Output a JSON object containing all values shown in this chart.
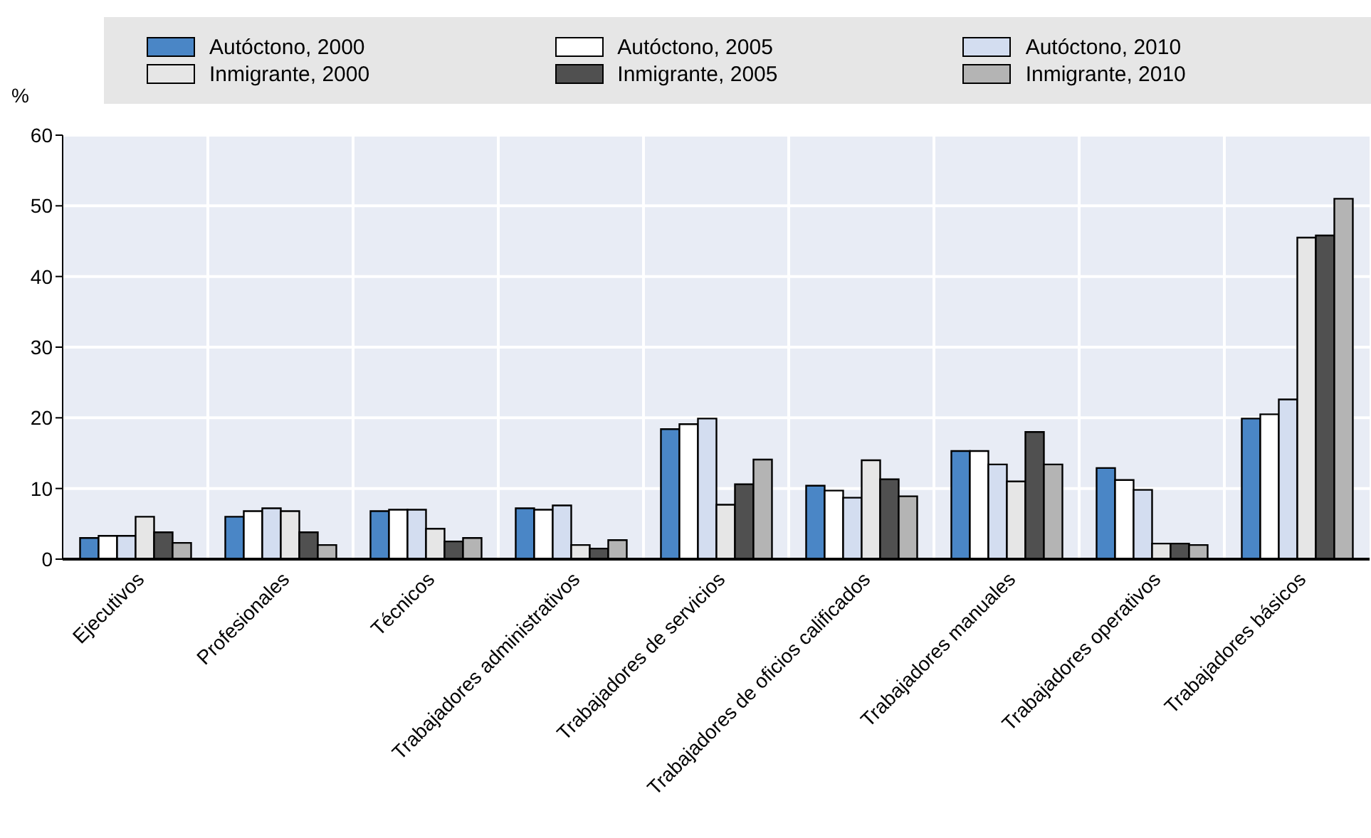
{
  "chart_data": {
    "type": "bar",
    "ylabel": "%",
    "categories": [
      "Ejecutivos",
      "Profesionales",
      "Técnicos",
      "Trabajadores administrativos",
      "Trabajadores de servicios",
      "Trabajadores de oficios calificados",
      "Trabajadores manuales",
      "Trabajadores operativos",
      "Trabajadores básicos"
    ],
    "series": [
      {
        "name": "Autóctono, 2000",
        "color": "#4a86c6",
        "values": [
          3.0,
          6.0,
          6.8,
          7.2,
          18.4,
          10.4,
          15.3,
          12.9,
          19.9
        ]
      },
      {
        "name": "Autóctono, 2005",
        "color": "#ffffff",
        "values": [
          3.3,
          6.8,
          7.0,
          7.0,
          19.1,
          9.7,
          15.3,
          11.2,
          20.5
        ]
      },
      {
        "name": "Autóctono, 2010",
        "color": "#d3ddf0",
        "values": [
          3.3,
          7.2,
          7.0,
          7.6,
          19.9,
          8.7,
          13.4,
          9.8,
          22.6
        ]
      },
      {
        "name": "Inmigrante, 2000",
        "color": "#e6e6e6",
        "values": [
          6.0,
          6.8,
          4.3,
          2.0,
          7.7,
          14.0,
          11.0,
          2.2,
          45.5
        ]
      },
      {
        "name": "Inmigrante, 2005",
        "color": "#505050",
        "values": [
          3.8,
          3.8,
          2.5,
          1.5,
          10.6,
          11.3,
          18.0,
          2.2,
          45.8
        ]
      },
      {
        "name": "Inmigrante, 2010",
        "color": "#b4b4b4",
        "values": [
          2.3,
          2.0,
          3.0,
          2.7,
          14.1,
          8.9,
          13.4,
          2.0,
          51.0
        ]
      }
    ],
    "ylim": [
      0,
      60
    ],
    "yticks": [
      0,
      10,
      20,
      30,
      40,
      50,
      60
    ],
    "grid": true,
    "legend": "top"
  }
}
